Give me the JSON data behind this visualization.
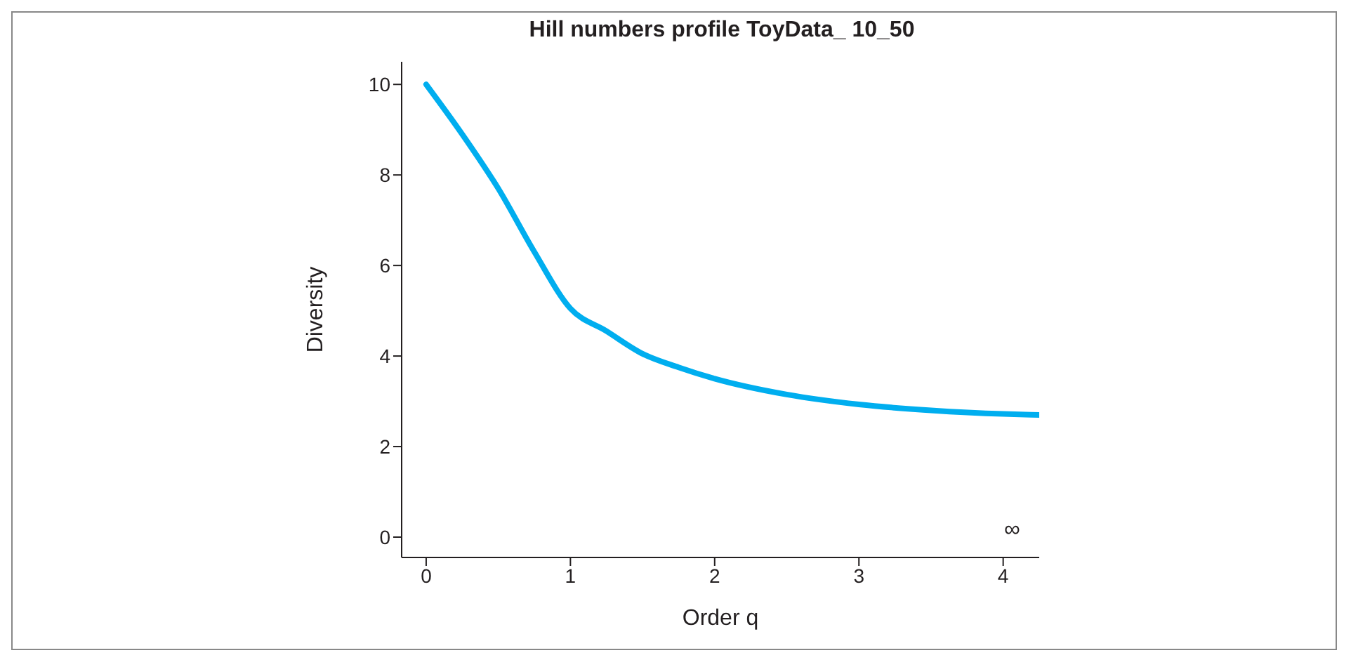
{
  "chart_data": {
    "type": "line",
    "title": "Hill numbers profile ToyData_ 10_50",
    "xlabel": "Order q",
    "ylabel": "Diversity",
    "x": [
      0,
      0.25,
      0.5,
      0.75,
      1,
      1.25,
      1.5,
      1.75,
      2,
      2.5,
      3,
      3.5,
      4,
      4.25
    ],
    "series": [
      {
        "color": "#00aeef",
        "values": [
          10,
          8.9,
          7.7,
          6.3,
          5.05,
          4.55,
          4.05,
          3.75,
          3.5,
          3.15,
          2.93,
          2.8,
          2.72,
          2.7
        ]
      }
    ],
    "xlim": [
      -0.17,
      4.25
    ],
    "xticks": [
      0,
      1,
      2,
      3,
      4
    ],
    "ylim": [
      -0.45,
      10.5
    ],
    "yticks": [
      0,
      2,
      4,
      6,
      8,
      10
    ],
    "annotations": [
      "∞"
    ],
    "grid": false,
    "legend": false,
    "marker": "none",
    "line_style": "solid"
  }
}
